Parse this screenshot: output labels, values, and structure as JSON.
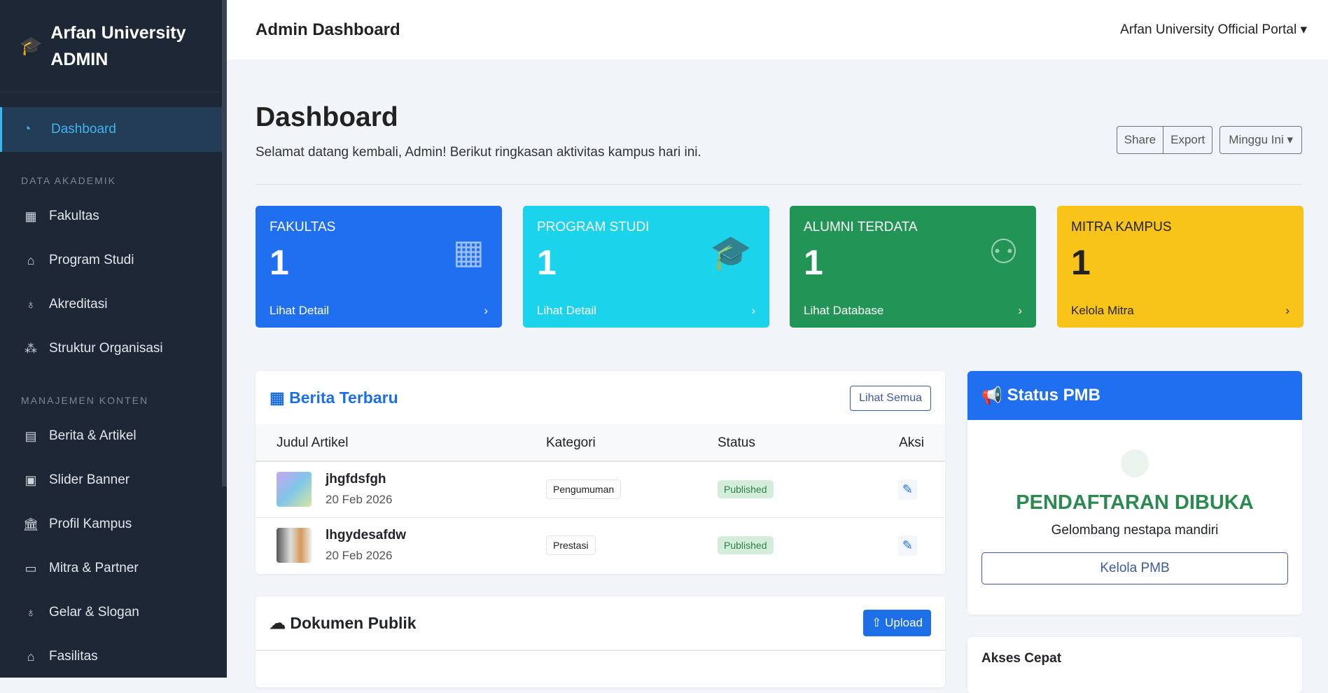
{
  "sidebar": {
    "brand_line1": "Arfan University",
    "brand_line2": "ADMIN",
    "active": "Dashboard",
    "section1": "DATA AKADEMIK",
    "section2": "MANAJEMEN KONTEN",
    "items1": [
      "Fakultas",
      "Program Studi",
      "Akreditasi",
      "Struktur Organisasi"
    ],
    "items2": [
      "Berita & Artikel",
      "Slider Banner",
      "Profil Kampus",
      "Mitra & Partner",
      "Gelar & Slogan",
      "Fasilitas"
    ]
  },
  "topbar": {
    "title": "Admin Dashboard",
    "portal": "Arfan University Official Portal"
  },
  "page": {
    "title": "Dashboard",
    "subtitle": "Selamat datang kembali, Admin! Berikut ringkasan aktivitas kampus hari ini.",
    "share": "Share",
    "export": "Export",
    "period": "Minggu Ini"
  },
  "cards": [
    {
      "label": "FAKULTAS",
      "value": "1",
      "link": "Lihat Detail",
      "color": "#1f6ff0"
    },
    {
      "label": "PROGRAM STUDI",
      "value": "1",
      "link": "Lihat Detail",
      "color": "#1cd3ec"
    },
    {
      "label": "ALUMNI TERDATA",
      "value": "1",
      "link": "Lihat Database",
      "color": "#229556"
    },
    {
      "label": "MITRA KAMPUS",
      "value": "1",
      "link": "Kelola Mitra",
      "color": "#f8c41a"
    }
  ],
  "berita": {
    "title": "Berita Terbaru",
    "see_all": "Lihat Semua",
    "headers": [
      "Judul Artikel",
      "Kategori",
      "Status",
      "Aksi"
    ],
    "rows": [
      {
        "title": "jhgfdsfgh",
        "date": "20 Feb 2026",
        "category": "Pengumuman",
        "status": "Published"
      },
      {
        "title": "lhgydesafdw",
        "date": "20 Feb 2026",
        "category": "Prestasi",
        "status": "Published"
      }
    ]
  },
  "dokumen": {
    "title": "Dokumen Publik",
    "upload": "Upload"
  },
  "pmb": {
    "title": "Status PMB",
    "status": "PENDAFTARAN DIBUKA",
    "wave": "Gelombang nestapa mandiri",
    "button": "Kelola PMB"
  },
  "akses": {
    "title": "Akses Cepat"
  }
}
